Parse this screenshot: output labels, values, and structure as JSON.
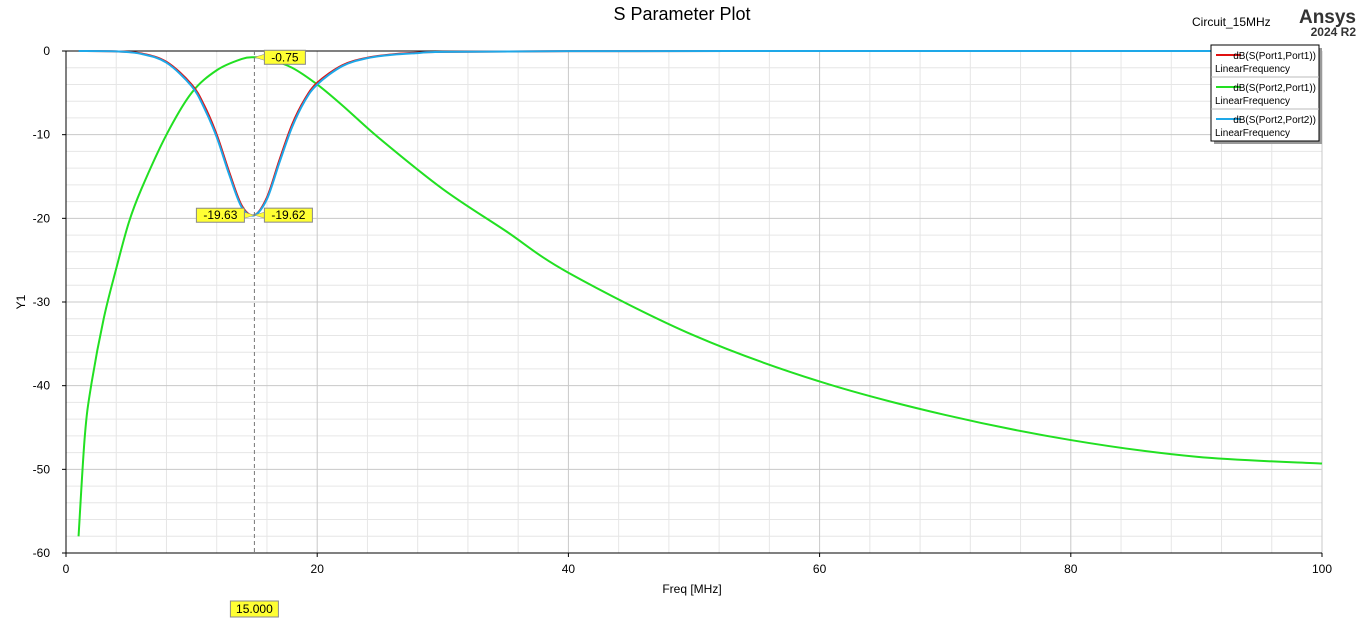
{
  "header": {
    "design_name": "Circuit_15MHz",
    "brand": "Ansys",
    "version": "2024 R2"
  },
  "chart_data": {
    "type": "line",
    "title": "S Parameter Plot",
    "xlabel": "Freq [MHz]",
    "ylabel": "Y1",
    "xlim": [
      0,
      100
    ],
    "ylim": [
      -60,
      0
    ],
    "x_ticks": [
      "0",
      "20",
      "40",
      "60",
      "80",
      "100"
    ],
    "y_ticks": [
      "0",
      "-10",
      "-20",
      "-30",
      "-40",
      "-50",
      "-60"
    ],
    "grid": true,
    "legend_position": "top-right",
    "series": [
      {
        "name": "dB(S(Port1,Port1))",
        "sweep": "LinearFrequency",
        "color": "#e01010",
        "x": [
          1,
          4,
          6,
          8,
          10,
          11,
          12,
          13,
          14,
          15,
          16,
          17,
          18,
          19,
          20,
          22,
          24,
          26,
          28,
          30,
          40,
          60,
          80,
          100
        ],
        "y": [
          0,
          -0.05,
          -0.3,
          -1.3,
          -4.0,
          -6.5,
          -10.0,
          -14.5,
          -18.5,
          -19.62,
          -17.5,
          -13.0,
          -8.8,
          -5.8,
          -3.8,
          -1.7,
          -0.8,
          -0.4,
          -0.2,
          -0.1,
          -0.02,
          0,
          0,
          0
        ]
      },
      {
        "name": "dB(S(Port2,Port1))",
        "sweep": "LinearFrequency",
        "color": "#22e022",
        "x": [
          1,
          1.5,
          2,
          3,
          4,
          5,
          6,
          8,
          10,
          12,
          14,
          15,
          16,
          18,
          20,
          22,
          25,
          30,
          35,
          40,
          50,
          60,
          70,
          80,
          90,
          100
        ],
        "y": [
          -58,
          -46,
          -40,
          -32,
          -26,
          -20.5,
          -16.5,
          -10,
          -5,
          -2.3,
          -0.95,
          -0.75,
          -0.9,
          -2.0,
          -4.0,
          -6.5,
          -10.5,
          -16.5,
          -21.5,
          -26.5,
          -34.0,
          -39.5,
          -43.5,
          -46.5,
          -48.5,
          -49.3
        ]
      },
      {
        "name": "dB(S(Port2,Port2))",
        "sweep": "LinearFrequency",
        "color": "#1ea8e8",
        "x": [
          1,
          4,
          6,
          8,
          10,
          11,
          12,
          13,
          14,
          15,
          16,
          17,
          18,
          19,
          20,
          22,
          24,
          26,
          28,
          30,
          40,
          60,
          80,
          100
        ],
        "y": [
          0,
          -0.05,
          -0.35,
          -1.4,
          -4.2,
          -6.8,
          -10.3,
          -14.8,
          -18.7,
          -19.63,
          -17.7,
          -13.3,
          -9.1,
          -6.0,
          -4.0,
          -1.8,
          -0.85,
          -0.45,
          -0.25,
          -0.1,
          -0.02,
          0,
          0,
          0
        ]
      }
    ],
    "markers": {
      "x_value": 15,
      "x_label": "15.000",
      "labels": [
        {
          "text": "-0.75",
          "x": 15,
          "y": -0.75,
          "side": "right"
        },
        {
          "text": "-19.63",
          "x": 15,
          "y": -19.63,
          "side": "left"
        },
        {
          "text": "-19.62",
          "x": 15,
          "y": -19.62,
          "side": "right"
        }
      ]
    }
  }
}
